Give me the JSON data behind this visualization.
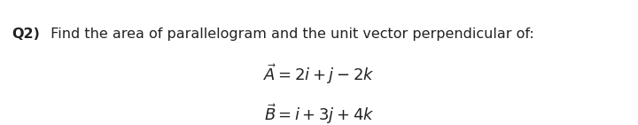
{
  "background_color": "#ffffff",
  "title_bold": "Q2)",
  "title_normal": " Find the area of parallelogram and the unit vector perpendicular of:",
  "line1": "$\\vec{A} = 2i + j - 2k$",
  "line2": "$\\vec{B} = i + 3j + 4k$",
  "title_fontsize": 11.5,
  "eq_fontsize": 13,
  "text_color": "#222222"
}
